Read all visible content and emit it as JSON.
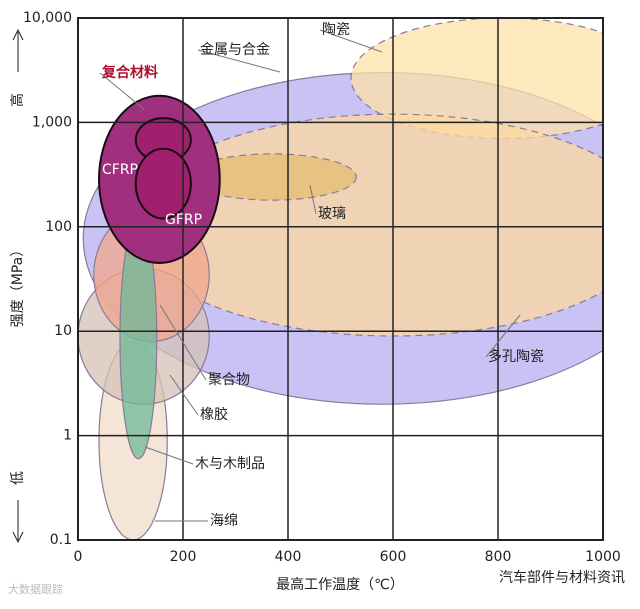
{
  "chart_data": {
    "type": "region",
    "xlabel": "最高工作温度（℃）",
    "ylabel": "强度（MPa）",
    "y_high": "高",
    "y_low": "低",
    "xlim": [
      0,
      1000
    ],
    "xticks": [
      0,
      200,
      400,
      600,
      800,
      1000
    ],
    "ylim": [
      0.1,
      10000
    ],
    "ylog": true,
    "yticks": [
      0.1,
      1,
      10,
      100,
      {
        "value": 1000,
        "label": "1,000"
      },
      {
        "value": 10000,
        "label": "10,000"
      }
    ],
    "grid": true,
    "regions": [
      {
        "name": "金属与合金",
        "color": "#b7aef0",
        "x": [
          10,
          1150
        ],
        "y": [
          2,
          3000
        ]
      },
      {
        "name": "陶瓷",
        "color": "#fde2a8",
        "x": [
          520,
          1100
        ],
        "y": [
          700,
          10000
        ]
      },
      {
        "name": "多孔陶瓷",
        "color": "#fcd8a0",
        "x": [
          100,
          1100
        ],
        "y": [
          9,
          1200
        ]
      },
      {
        "name": "玻璃",
        "color": "#e4bc70",
        "x": [
          210,
          530
        ],
        "y": [
          180,
          500
        ]
      },
      {
        "name": "海绵",
        "color": "#f2dcca",
        "x": [
          40,
          170
        ],
        "y": [
          0.1,
          8
        ]
      },
      {
        "name": "橡胶",
        "color": "#d6c1b6",
        "x": [
          0,
          250
        ],
        "y": [
          2,
          40
        ]
      },
      {
        "name": "聚合物",
        "color": "#f0a58c",
        "x": [
          30,
          250
        ],
        "y": [
          8,
          150
        ]
      },
      {
        "name": "木与木制品",
        "color": "#6dba98",
        "x": [
          80,
          150
        ],
        "y": [
          0.6,
          120
        ]
      },
      {
        "name": "复合材料",
        "color": "#a0307e",
        "x": [
          40,
          270
        ],
        "y": [
          45,
          1800
        ]
      },
      {
        "name": "CFRP",
        "color": "#a01f6e",
        "x": [
          110,
          215
        ],
        "y": [
          420,
          1100
        ]
      },
      {
        "name": "GFRP",
        "color": "#a01f6e",
        "x": [
          110,
          215
        ],
        "y": [
          120,
          560
        ]
      }
    ],
    "watermarks": [
      "大数据跟踪",
      "汽车部件与材料资讯"
    ]
  }
}
